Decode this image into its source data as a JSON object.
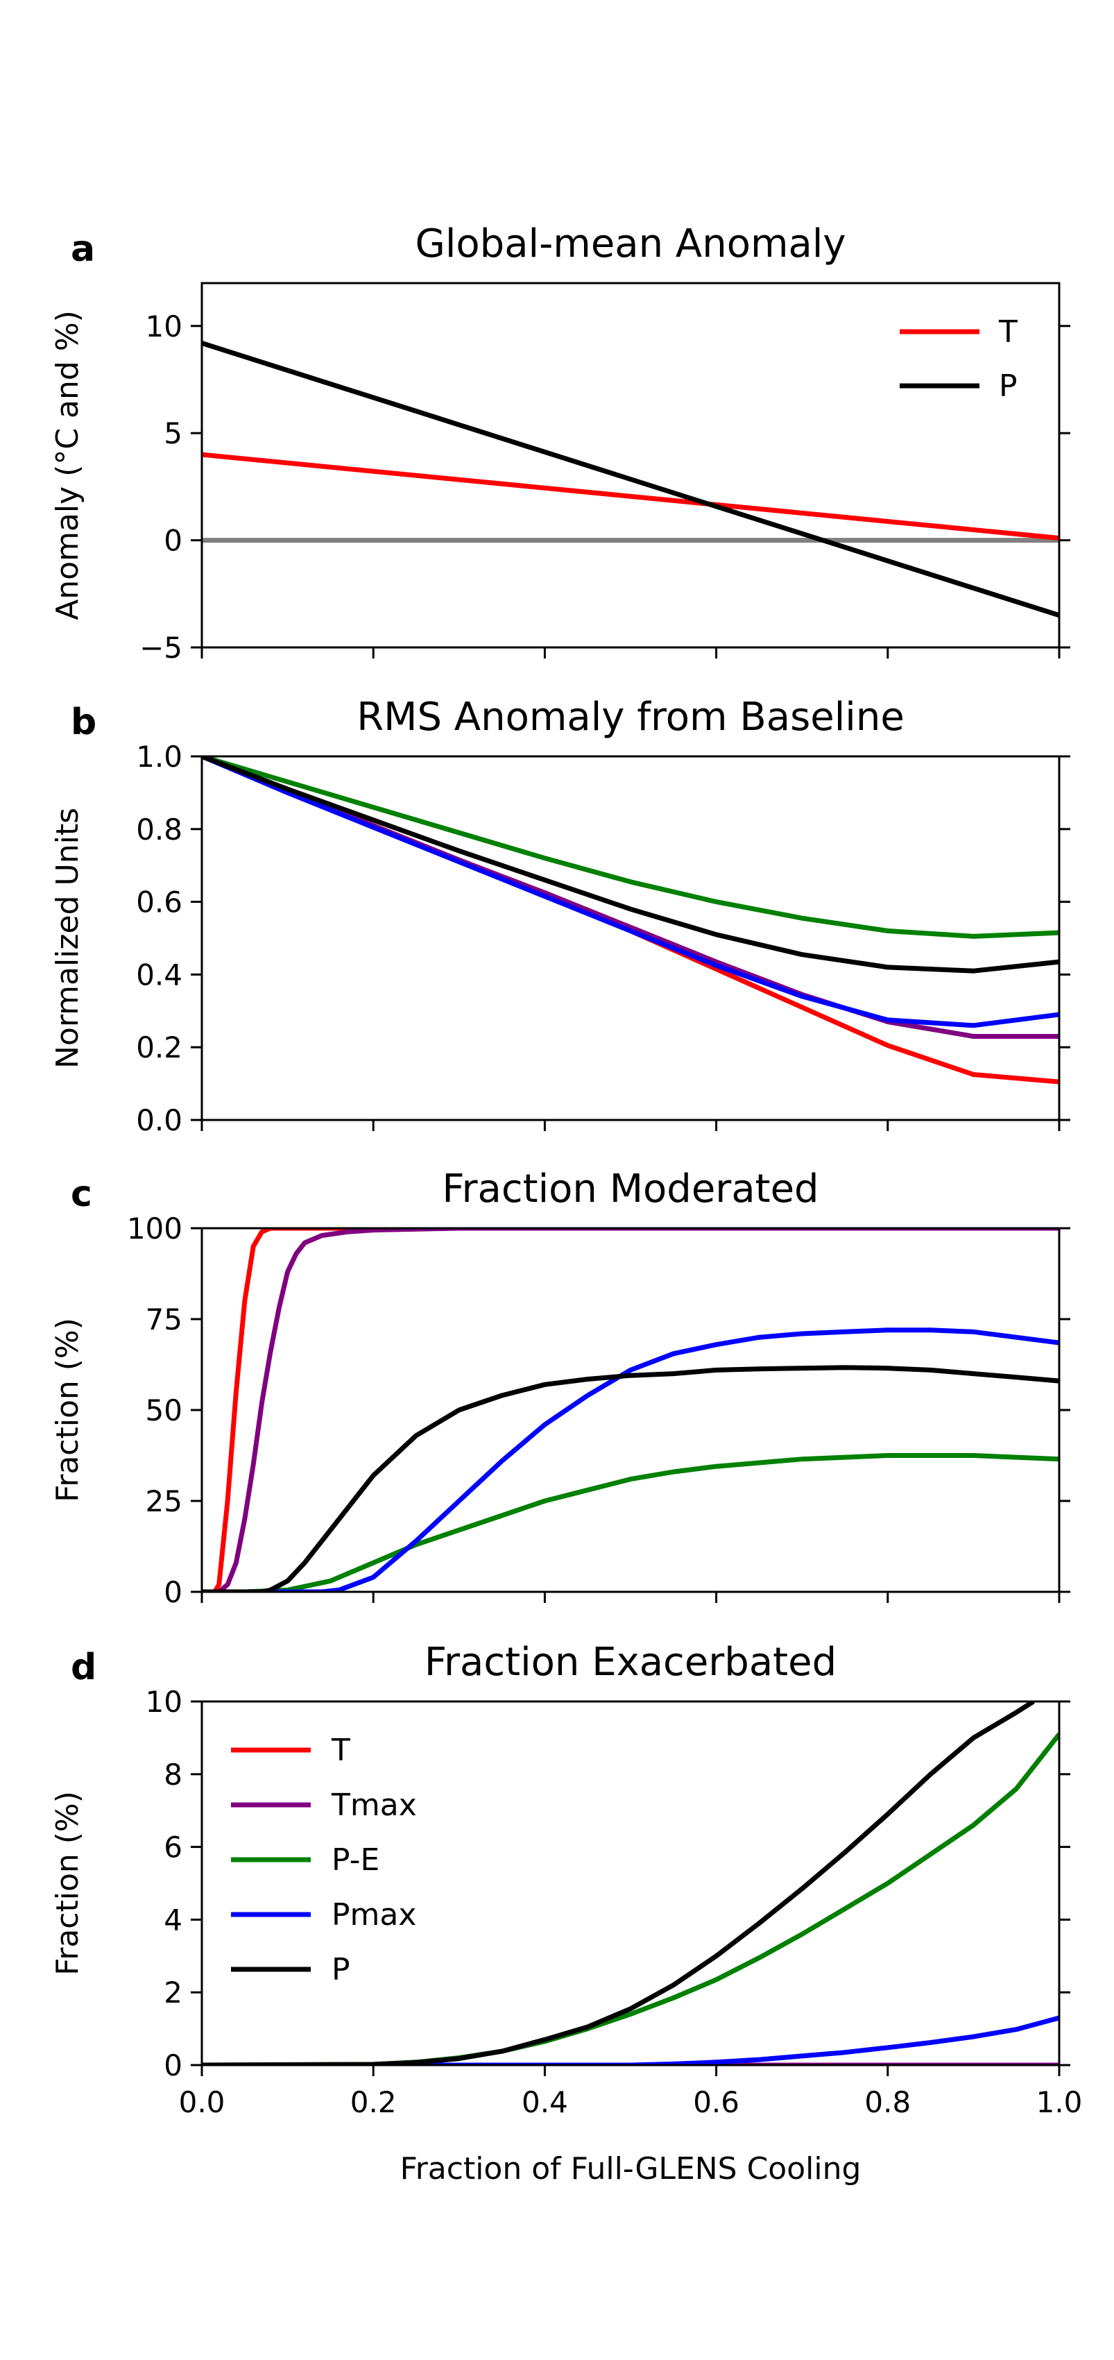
{
  "figure": {
    "xlabel": "Fraction of Full-GLENS Cooling",
    "x_ticks": [
      0.0,
      0.2,
      0.4,
      0.6,
      0.8,
      1.0
    ]
  },
  "series_colors": {
    "T": "#ff0000",
    "Tmax": "#800080",
    "P-E": "#008000",
    "Pmax": "#0000ff",
    "P": "#000000",
    "zero_line": "#808080"
  },
  "chart_data": [
    {
      "type": "line",
      "panel_letter": "a",
      "title": "Global-mean Anomaly",
      "ylabel": "Anomaly (°C and %)",
      "ylim": [
        -5,
        12
      ],
      "yticks": [
        -5,
        0,
        5,
        10
      ],
      "xlim": [
        0,
        1
      ],
      "legend_position": "top-right",
      "legend": [
        "T",
        "P"
      ],
      "reference_line": {
        "y": 0,
        "color": "#808080"
      },
      "series": [
        {
          "name": "T",
          "x": [
            0,
            1
          ],
          "y": [
            4.0,
            0.1
          ]
        },
        {
          "name": "P",
          "x": [
            0,
            1
          ],
          "y": [
            9.2,
            -3.5
          ]
        }
      ]
    },
    {
      "type": "line",
      "panel_letter": "b",
      "title": "RMS Anomaly from Baseline",
      "ylabel": "Normalized Units",
      "ylim": [
        0,
        1
      ],
      "yticks": [
        0.0,
        0.2,
        0.4,
        0.6,
        0.8,
        1.0
      ],
      "xlim": [
        0,
        1
      ],
      "series": [
        {
          "name": "T",
          "x": [
            0,
            0.1,
            0.2,
            0.3,
            0.4,
            0.5,
            0.6,
            0.7,
            0.8,
            0.9,
            1.0
          ],
          "y": [
            1.0,
            0.905,
            0.81,
            0.715,
            0.62,
            0.52,
            0.415,
            0.31,
            0.205,
            0.125,
            0.105
          ]
        },
        {
          "name": "Tmax",
          "x": [
            0,
            0.1,
            0.2,
            0.3,
            0.4,
            0.5,
            0.6,
            0.7,
            0.8,
            0.9,
            1.0
          ],
          "y": [
            1.0,
            0.905,
            0.81,
            0.715,
            0.625,
            0.53,
            0.435,
            0.345,
            0.27,
            0.23,
            0.23
          ]
        },
        {
          "name": "P-E",
          "x": [
            0,
            0.1,
            0.2,
            0.3,
            0.4,
            0.5,
            0.6,
            0.7,
            0.8,
            0.9,
            1.0
          ],
          "y": [
            1.0,
            0.93,
            0.86,
            0.79,
            0.72,
            0.655,
            0.6,
            0.555,
            0.52,
            0.505,
            0.515
          ]
        },
        {
          "name": "Pmax",
          "x": [
            0,
            0.1,
            0.2,
            0.3,
            0.4,
            0.5,
            0.6,
            0.7,
            0.8,
            0.9,
            1.0
          ],
          "y": [
            1.0,
            0.9,
            0.805,
            0.71,
            0.615,
            0.52,
            0.425,
            0.34,
            0.275,
            0.26,
            0.29
          ]
        },
        {
          "name": "P",
          "x": [
            0,
            0.1,
            0.2,
            0.3,
            0.4,
            0.5,
            0.6,
            0.7,
            0.8,
            0.9,
            1.0
          ],
          "y": [
            1.0,
            0.91,
            0.825,
            0.74,
            0.66,
            0.58,
            0.51,
            0.455,
            0.42,
            0.41,
            0.435
          ]
        }
      ]
    },
    {
      "type": "line",
      "panel_letter": "c",
      "title": "Fraction Moderated",
      "ylabel": "Fraction (%)",
      "ylim": [
        0,
        100
      ],
      "yticks": [
        0,
        25,
        50,
        75,
        100
      ],
      "xlim": [
        0,
        1
      ],
      "series": [
        {
          "name": "T",
          "x": [
            0.0,
            0.015,
            0.02,
            0.03,
            0.04,
            0.05,
            0.06,
            0.07,
            0.08,
            0.1,
            0.2,
            0.4,
            0.6,
            0.8,
            1.0
          ],
          "y": [
            0,
            0,
            2,
            25,
            55,
            80,
            95,
            99,
            100,
            100,
            100,
            100,
            100,
            100,
            100
          ]
        },
        {
          "name": "Tmax",
          "x": [
            0.0,
            0.02,
            0.03,
            0.04,
            0.05,
            0.06,
            0.07,
            0.08,
            0.09,
            0.1,
            0.11,
            0.12,
            0.14,
            0.17,
            0.2,
            0.3,
            0.4,
            0.6,
            0.8,
            1.0
          ],
          "y": [
            0,
            0,
            2,
            8,
            20,
            35,
            52,
            66,
            78,
            88,
            93,
            96,
            98,
            99,
            99.5,
            100,
            100,
            100,
            100,
            100
          ]
        },
        {
          "name": "P-E",
          "x": [
            0.0,
            0.05,
            0.1,
            0.15,
            0.2,
            0.25,
            0.3,
            0.35,
            0.4,
            0.45,
            0.5,
            0.55,
            0.6,
            0.65,
            0.7,
            0.75,
            0.8,
            0.85,
            0.9,
            0.95,
            1.0
          ],
          "y": [
            0,
            0,
            0.5,
            3,
            8,
            13,
            17,
            21,
            25,
            28,
            31,
            33,
            34.5,
            35.5,
            36.5,
            37,
            37.5,
            37.5,
            37.5,
            37,
            36.5
          ]
        },
        {
          "name": "Pmax",
          "x": [
            0.0,
            0.1,
            0.14,
            0.16,
            0.2,
            0.25,
            0.3,
            0.35,
            0.4,
            0.45,
            0.5,
            0.55,
            0.6,
            0.65,
            0.7,
            0.75,
            0.8,
            0.85,
            0.9,
            0.95,
            1.0
          ],
          "y": [
            0,
            0,
            0,
            0.5,
            4,
            14,
            25,
            36,
            46,
            54,
            61,
            65.5,
            68,
            70,
            71,
            71.5,
            72,
            72,
            71.5,
            70,
            68.5
          ]
        },
        {
          "name": "P",
          "x": [
            0.0,
            0.07,
            0.08,
            0.1,
            0.12,
            0.15,
            0.2,
            0.25,
            0.3,
            0.35,
            0.4,
            0.45,
            0.5,
            0.55,
            0.6,
            0.65,
            0.7,
            0.75,
            0.8,
            0.85,
            0.9,
            0.95,
            1.0
          ],
          "y": [
            0,
            0,
            0.5,
            3,
            8,
            17,
            32,
            43,
            50,
            54,
            57,
            58.5,
            59.5,
            60,
            61,
            61.3,
            61.5,
            61.7,
            61.5,
            61,
            60,
            59,
            58
          ]
        }
      ]
    },
    {
      "type": "line",
      "panel_letter": "d",
      "title": "Fraction Exacerbated",
      "ylabel": "Fraction (%)",
      "ylim": [
        0,
        10
      ],
      "yticks": [
        0,
        2,
        4,
        6,
        8,
        10
      ],
      "xlim": [
        0,
        1
      ],
      "legend_position": "top-left",
      "legend": [
        "T",
        "Tmax",
        "P-E",
        "Pmax",
        "P"
      ],
      "series": [
        {
          "name": "T",
          "x": [
            0,
            1
          ],
          "y": [
            0,
            0
          ]
        },
        {
          "name": "Tmax",
          "x": [
            0,
            1
          ],
          "y": [
            0,
            0
          ]
        },
        {
          "name": "P-E",
          "x": [
            0.0,
            0.2,
            0.25,
            0.3,
            0.35,
            0.4,
            0.45,
            0.5,
            0.55,
            0.6,
            0.65,
            0.7,
            0.75,
            0.8,
            0.85,
            0.9,
            0.95,
            1.0
          ],
          "y": [
            0,
            0.02,
            0.08,
            0.2,
            0.38,
            0.65,
            1.0,
            1.4,
            1.85,
            2.35,
            2.95,
            3.6,
            4.3,
            5.0,
            5.8,
            6.6,
            7.6,
            9.1
          ]
        },
        {
          "name": "Pmax",
          "x": [
            0.0,
            0.4,
            0.5,
            0.55,
            0.6,
            0.65,
            0.7,
            0.75,
            0.8,
            0.85,
            0.9,
            0.95,
            1.0
          ],
          "y": [
            0,
            0,
            0,
            0.03,
            0.08,
            0.15,
            0.25,
            0.35,
            0.48,
            0.62,
            0.78,
            0.98,
            1.3
          ]
        },
        {
          "name": "P",
          "x": [
            0.0,
            0.2,
            0.25,
            0.3,
            0.35,
            0.4,
            0.45,
            0.5,
            0.55,
            0.6,
            0.65,
            0.7,
            0.75,
            0.8,
            0.85,
            0.9,
            0.95,
            0.97
          ],
          "y": [
            0,
            0.02,
            0.07,
            0.18,
            0.38,
            0.7,
            1.05,
            1.55,
            2.2,
            3.0,
            3.9,
            4.85,
            5.85,
            6.9,
            8.0,
            9.0,
            9.7,
            10.0
          ]
        }
      ]
    }
  ]
}
